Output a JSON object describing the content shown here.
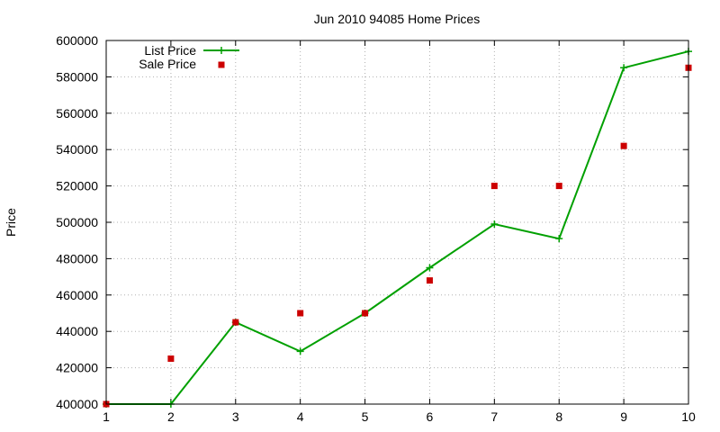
{
  "chart_data": {
    "type": "line",
    "title": "Jun 2010 94085 Home Prices",
    "xlabel": "",
    "ylabel": "Price",
    "x": [
      1,
      2,
      3,
      4,
      5,
      6,
      7,
      8,
      9,
      10
    ],
    "xlim": [
      1,
      10
    ],
    "ylim": [
      400000,
      600000
    ],
    "x_ticks": [
      1,
      2,
      3,
      4,
      5,
      6,
      7,
      8,
      9,
      10
    ],
    "y_ticks": [
      400000,
      420000,
      440000,
      460000,
      480000,
      500000,
      520000,
      540000,
      560000,
      580000,
      600000
    ],
    "grid": true,
    "legend_position": "top-left",
    "series": [
      {
        "name": "List Price",
        "style": "line-with-plus-markers",
        "color": "#00a000",
        "values": [
          400000,
          400000,
          445000,
          429000,
          450000,
          475000,
          499000,
          491000,
          585000,
          594000
        ]
      },
      {
        "name": "Sale Price",
        "style": "square-points",
        "color": "#cc0000",
        "values": [
          400000,
          425000,
          445000,
          450000,
          450000,
          468000,
          520000,
          520000,
          542000,
          585000
        ]
      }
    ]
  }
}
